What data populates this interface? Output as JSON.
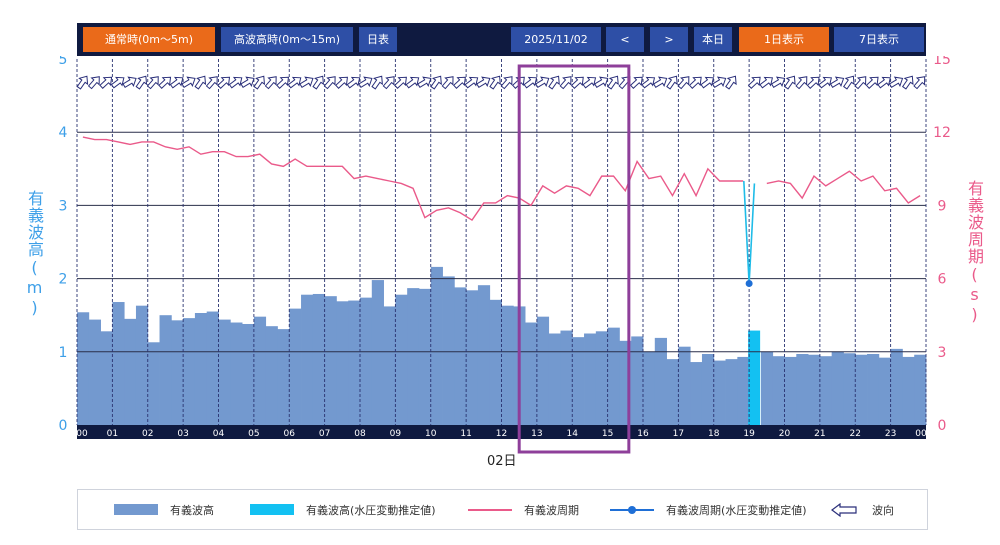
{
  "toolbar": {
    "normal_label": "通常時(0m〜5m)",
    "high_label": "高波高時(0m〜15m)",
    "daily_table_label": "日表",
    "date": "2025/11/02",
    "prev_label": "<",
    "next_label": ">",
    "today_label": "本日",
    "one_day_label": "1日表示",
    "seven_day_label": "7日表示"
  },
  "colors": {
    "toolbar_bg": "#0f1a40",
    "orange": "#ea6a1a",
    "blue_btn": "#2e4fa6",
    "bar": "#7399cf",
    "bar_estimated": "#13c1f2",
    "period_line": "#ea5a8a",
    "period_estimated": "#1fbce8",
    "highlight": "#8e3f9a"
  },
  "chart_data": {
    "type": "bar",
    "date_label": "02日",
    "yleft_label": "有義波高(m)",
    "yright_label": "有義波周期(s)",
    "yleft_ticks": [
      "0",
      "1",
      "2",
      "3",
      "4",
      "5"
    ],
    "yright_ticks": [
      "0",
      "3",
      "6",
      "9",
      "12",
      "15"
    ],
    "ylim_left": [
      0,
      5
    ],
    "ylim_right": [
      0,
      15
    ],
    "hour_labels": [
      "00",
      "01",
      "02",
      "03",
      "04",
      "05",
      "06",
      "07",
      "08",
      "09",
      "10",
      "11",
      "12",
      "13",
      "14",
      "15",
      "16",
      "17",
      "18",
      "19",
      "20",
      "21",
      "22",
      "23",
      "00"
    ],
    "highlight_hours": [
      12.5,
      15.6
    ],
    "wave_height": [
      1.54,
      1.44,
      1.28,
      1.68,
      1.45,
      1.63,
      1.13,
      1.5,
      1.43,
      1.46,
      1.53,
      1.55,
      1.44,
      1.4,
      1.38,
      1.48,
      1.35,
      1.31,
      1.59,
      1.78,
      1.79,
      1.76,
      1.69,
      1.7,
      1.74,
      1.98,
      1.62,
      1.78,
      1.87,
      1.86,
      2.16,
      2.03,
      1.88,
      1.84,
      1.91,
      1.71,
      1.63,
      1.62,
      1.4,
      1.48,
      1.25,
      1.29,
      1.2,
      1.25,
      1.28,
      1.33,
      1.15,
      1.21,
      1.0,
      1.19,
      0.9,
      1.07,
      0.86,
      0.97,
      0.88,
      0.9,
      0.93,
      0.0,
      1.0,
      0.94,
      0.93,
      0.97,
      0.96,
      0.94,
      1.0,
      0.98,
      0.96,
      0.97,
      0.92,
      1.04,
      0.93,
      0.96
    ],
    "estimated_height": {
      "hour": 19,
      "value": 1.29
    },
    "wave_period": [
      11.8,
      11.7,
      11.7,
      11.6,
      11.5,
      11.6,
      11.6,
      11.4,
      11.3,
      11.4,
      11.1,
      11.2,
      11.2,
      11.0,
      11.0,
      11.1,
      10.7,
      10.6,
      10.9,
      10.6,
      10.6,
      10.6,
      10.6,
      10.1,
      10.2,
      10.1,
      10.0,
      9.9,
      9.7,
      8.5,
      8.8,
      8.9,
      8.7,
      8.4,
      9.1,
      9.1,
      9.4,
      9.3,
      9.0,
      9.8,
      9.5,
      9.8,
      9.7,
      9.4,
      10.2,
      10.2,
      9.6,
      10.8,
      10.1,
      10.2,
      9.4,
      10.3,
      9.4,
      10.5,
      10.0,
      10.0,
      10.0,
      null,
      9.9,
      10.0,
      9.9,
      9.3,
      10.2,
      9.8,
      10.1,
      10.4,
      10.0,
      10.2,
      9.6,
      9.7,
      9.1,
      9.4
    ],
    "estimated_period": {
      "points": [
        [
          18.85,
          10.0
        ],
        [
          19.0,
          5.8
        ],
        [
          19.15,
          9.9
        ]
      ]
    },
    "direction_missing_hours": [
      18.75
    ],
    "legend": [
      "有義波高",
      "有義波高(水圧変動推定値)",
      "有義波周期",
      "有義波周期(水圧変動推定値)",
      "波向"
    ]
  }
}
